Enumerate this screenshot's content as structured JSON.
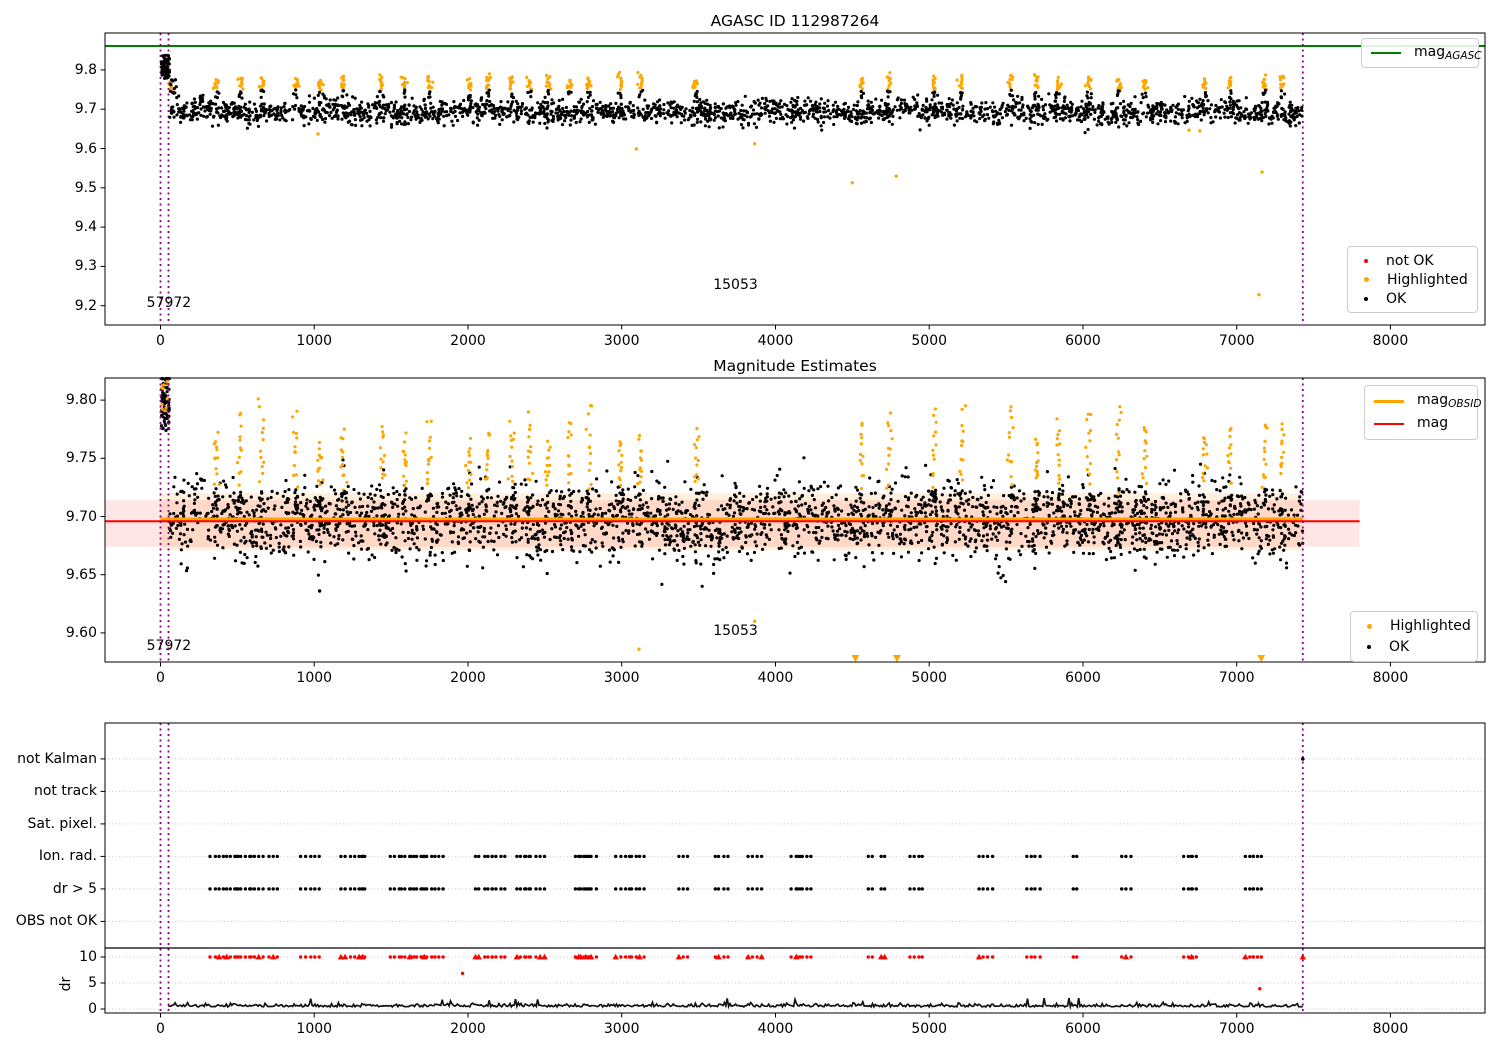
{
  "figure": {
    "bg": "#ffffff"
  },
  "colors": {
    "green": "#008000",
    "orange": "#ffa500",
    "red": "#ff0000",
    "black": "#000000",
    "purple": "#8b008b",
    "grid": "#c8c8c8",
    "band_inner": "rgba(255,80,80,0.14)",
    "band_outer": "rgba(255,165,60,0.18)",
    "trace": "#111111"
  },
  "top_plot": {
    "title": "AGASC ID 112987264",
    "line_legend": {
      "main": "mag",
      "sub": "AGASC"
    },
    "marker_legend": [
      {
        "label": "not OK",
        "color": "red"
      },
      {
        "label": "Highlighted",
        "color": "orange"
      },
      {
        "label": "OK",
        "color": "black"
      }
    ]
  },
  "middle_plot": {
    "title": "Magnitude Estimates",
    "line_legend": [
      {
        "main": "mag",
        "sub": "OBSID",
        "color": "orange"
      },
      {
        "main": "mag",
        "sub": "",
        "color": "red"
      }
    ],
    "marker_legend": [
      {
        "label": "Highlighted",
        "color": "orange"
      },
      {
        "label": "OK",
        "color": "black"
      }
    ]
  },
  "bottom_plot": {
    "ylabel": "dr"
  },
  "chart_data": [
    {
      "type": "scatter",
      "title": "AGASC ID 112987264",
      "xlim": [
        -361,
        8615
      ],
      "ylim": [
        9.151,
        9.894
      ],
      "xticks": [
        0,
        1000,
        2000,
        3000,
        4000,
        5000,
        6000,
        7000,
        8000
      ],
      "xtick_labels": [
        "0",
        "1000",
        "2000",
        "3000",
        "4000",
        "5000",
        "6000",
        "7000",
        "8000"
      ],
      "yticks": [
        9.2,
        9.3,
        9.4,
        9.5,
        9.6,
        9.7,
        9.8
      ],
      "ytick_labels": [
        "9.2",
        "9.3",
        "9.4",
        "9.5",
        "9.6",
        "9.7",
        "9.8"
      ],
      "mag_agasc_line": 9.861,
      "vlines": [
        0,
        52,
        7430
      ],
      "baseline": {
        "x_range": [
          60,
          7430
        ],
        "n": 2300,
        "mean": 9.694,
        "sd": 0.015,
        "clip": [
          9.629,
          9.748
        ]
      },
      "start_cluster": {
        "x_range": [
          4,
          58
        ],
        "n": 85,
        "center": 9.806,
        "sd": 0.014,
        "clip": [
          9.777,
          9.837
        ]
      },
      "start_orange": [
        [
          58,
          9.763
        ],
        [
          63,
          9.77
        ],
        [
          66,
          9.753
        ],
        [
          71,
          9.758
        ],
        [
          76,
          9.748
        ],
        [
          82,
          9.744
        ]
      ],
      "highlight_x": [
        360,
        520,
        660,
        880,
        1040,
        1190,
        1440,
        1590,
        1750,
        2010,
        2130,
        2280,
        2400,
        2520,
        2660,
        2790,
        2990,
        3120,
        3480,
        4560,
        4740,
        5030,
        5210,
        5530,
        5700,
        5840,
        6040,
        6230,
        6400,
        6790,
        6960,
        7180,
        7290
      ],
      "spike": {
        "orange_n": 10,
        "y_base": 9.753,
        "peak_min": 9.773,
        "peak_max": 9.792,
        "black_n": 4
      },
      "orange_outliers": [
        [
          1025,
          9.637
        ],
        [
          3095,
          9.599
        ],
        [
          3865,
          9.612
        ],
        [
          4500,
          9.513
        ],
        [
          4785,
          9.53
        ],
        [
          6690,
          9.647
        ],
        [
          6760,
          9.645
        ],
        [
          7165,
          9.54
        ],
        [
          7145,
          9.228
        ]
      ],
      "annotations": [
        {
          "text": "57972",
          "x": 55,
          "y": 9.206
        },
        {
          "text": "15053",
          "x": 3740,
          "y": 9.252
        }
      ]
    },
    {
      "type": "scatter",
      "title": "Magnitude Estimates",
      "xlim": [
        -361,
        8615
      ],
      "ylim": [
        9.575,
        9.819
      ],
      "xticks": [
        0,
        1000,
        2000,
        3000,
        4000,
        5000,
        6000,
        7000,
        8000
      ],
      "xtick_labels": [
        "0",
        "1000",
        "2000",
        "3000",
        "4000",
        "5000",
        "6000",
        "7000",
        "8000"
      ],
      "yticks": [
        9.6,
        9.65,
        9.7,
        9.75,
        9.8
      ],
      "ytick_labels": [
        "9.60",
        "9.65",
        "9.70",
        "9.75",
        "9.80"
      ],
      "mag_line": {
        "y": 9.696,
        "x_range": [
          -361,
          7800
        ]
      },
      "mag_obsid_line": {
        "y": 9.6978,
        "x_range": [
          0,
          7430
        ]
      },
      "band_inner": {
        "y": [
          9.674,
          9.714
        ],
        "x_range": [
          -361,
          7800
        ]
      },
      "band_outer": {
        "y": [
          9.671,
          9.72
        ],
        "x_range": [
          0,
          7430
        ]
      },
      "vlines": [
        0,
        52,
        7430
      ],
      "baseline": {
        "x_range": [
          60,
          7430
        ],
        "n": 2800,
        "mean": 9.697,
        "sd": 0.016,
        "clip": [
          9.637,
          9.752
        ]
      },
      "start_cluster": {
        "x_range": [
          4,
          58
        ],
        "n": 90,
        "center": 9.8,
        "sd": 0.013,
        "clip": [
          9.772,
          9.8185
        ]
      },
      "start_orange": {
        "x_range": [
          8,
          50
        ],
        "n": 10,
        "y_range": [
          9.79,
          9.817
        ]
      },
      "highlight_x": [
        360,
        520,
        660,
        880,
        1040,
        1190,
        1440,
        1590,
        1750,
        2010,
        2130,
        2280,
        2400,
        2520,
        2660,
        2790,
        2990,
        3120,
        3480,
        4560,
        4740,
        5030,
        5210,
        5530,
        5700,
        5840,
        6040,
        6230,
        6400,
        6790,
        6960,
        7180,
        7290
      ],
      "spike": {
        "orange_n": 12,
        "y_base": 9.728,
        "peak_min": 9.762,
        "peak_max": 9.796,
        "black_n": 6
      },
      "black_outliers": [
        [
          1035,
          9.636
        ]
      ],
      "orange_outliers": [
        [
          3112,
          9.586
        ],
        [
          3865,
          9.61
        ]
      ],
      "clipped_low_x": [
        4520,
        4790,
        7160
      ],
      "annotations": [
        {
          "text": "57972",
          "x": 55,
          "y": 9.589
        },
        {
          "text": "15053",
          "x": 3740,
          "y": 9.602
        }
      ]
    },
    {
      "type": "flags_dr",
      "xlim": [
        -361,
        8615
      ],
      "ylim": [
        -0.77,
        55
      ],
      "xticks": [
        0,
        1000,
        2000,
        3000,
        4000,
        5000,
        6000,
        7000,
        8000
      ],
      "xtick_labels": [
        "0",
        "1000",
        "2000",
        "3000",
        "4000",
        "5000",
        "6000",
        "7000",
        "8000"
      ],
      "categories": [
        {
          "label": "not Kalman",
          "y": 48.1
        },
        {
          "label": "not track",
          "y": 41.85
        },
        {
          "label": "Sat. pixel.",
          "y": 35.6
        },
        {
          "label": "Ion. rad.",
          "y": 29.35
        },
        {
          "label": "dr > 5",
          "y": 23.1
        },
        {
          "label": "OBS not OK",
          "y": 16.85
        }
      ],
      "dr_ticks": [
        {
          "label": "10",
          "y": 10
        },
        {
          "label": "5",
          "y": 5
        },
        {
          "label": "0",
          "y": 0
        }
      ],
      "ylabel": "dr",
      "separator_y": 11.73,
      "vlines": [
        0,
        52,
        7430
      ],
      "flag_cluster_x": [
        320,
        420,
        490,
        580,
        700,
        910,
        970,
        1170,
        1230,
        1300,
        1490,
        1560,
        1630,
        1700,
        1780,
        2040,
        2100,
        2150,
        2310,
        2370,
        2440,
        2690,
        2730,
        2800,
        2960,
        3060,
        3110,
        3370,
        3600,
        3820,
        4100,
        4140,
        4600,
        4680,
        4870,
        5320,
        5630,
        5930,
        6250,
        6650,
        6700,
        7050,
        7100
      ],
      "flag_row_ys": [
        29.35,
        23.1
      ],
      "red_row_y": 10,
      "red_singles": [
        [
          1965,
          6.85
        ],
        [
          7150,
          3.9
        ]
      ],
      "red_triangle_singles": [
        [
          7430,
          10
        ]
      ],
      "black_singles": [
        [
          7430,
          48.1
        ]
      ],
      "trace": {
        "x_range": [
          50,
          7430
        ],
        "step": 9,
        "base": 0.4,
        "noise": 0.33
      }
    }
  ]
}
